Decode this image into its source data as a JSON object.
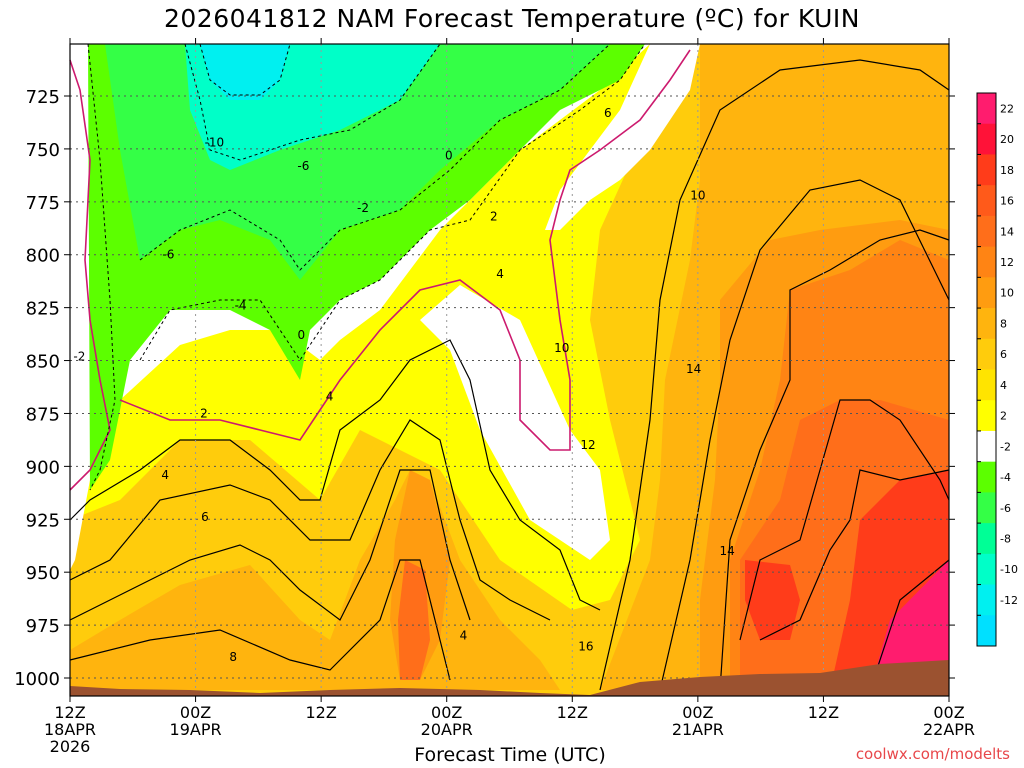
{
  "title": "2026041812 NAM Forecast Temperature (ºC) for KUIN",
  "credit": "coolwx.com/modelts",
  "chart_data": {
    "type": "heatmap",
    "title": "2026041812 NAM Forecast Temperature (ºC) for KUIN",
    "xlabel": "Forecast Time (UTC)",
    "ylabel": "",
    "ylim": [
      1010,
      700
    ],
    "y_ticks": [
      725,
      750,
      775,
      800,
      825,
      850,
      875,
      900,
      925,
      950,
      975,
      1000
    ],
    "x_ticks": [
      {
        "hours": 0,
        "label": [
          "12Z",
          "18APR",
          "2026"
        ]
      },
      {
        "hours": 12,
        "label": [
          "00Z",
          "19APR"
        ]
      },
      {
        "hours": 24,
        "label": [
          "12Z"
        ]
      },
      {
        "hours": 36,
        "label": [
          "00Z",
          "20APR"
        ]
      },
      {
        "hours": 48,
        "label": [
          "12Z"
        ]
      },
      {
        "hours": 60,
        "label": [
          "00Z",
          "21APR"
        ]
      },
      {
        "hours": 72,
        "label": [
          "12Z"
        ]
      },
      {
        "hours": 84,
        "label": [
          "00Z",
          "22APR"
        ]
      }
    ],
    "colorbar": {
      "labels": [
        22,
        20,
        18,
        16,
        14,
        12,
        10,
        8,
        6,
        4,
        2,
        -2,
        -4,
        -6,
        -8,
        -10,
        -12
      ],
      "colors": [
        "#ff1c6e",
        "#ff1238",
        "#ff3c1a",
        "#ff5a1a",
        "#ff6e1a",
        "#ff8414",
        "#ff9c10",
        "#ffb40e",
        "#ffcc0c",
        "#ffe400",
        "#ffff00",
        "#ffffff",
        "#5cff00",
        "#34ff46",
        "#00ff96",
        "#00ffc8",
        "#00f0f0",
        "#00e0ff"
      ]
    },
    "bands": [
      {
        "range": "< -8",
        "color": "#00f0f0"
      },
      {
        "range": "-8 to -6",
        "color": "#00ffc8"
      },
      {
        "range": "-6 to -2",
        "color": "#5cff00"
      },
      {
        "range": "-2 to 2",
        "color": "#ffffff"
      },
      {
        "range": "2 to 4",
        "color": "#ffff00"
      },
      {
        "range": "4 to 6",
        "color": "#ffe400"
      },
      {
        "range": "6 to 8",
        "color": "#ffcc0c"
      },
      {
        "range": "8 to 10",
        "color": "#ffb40e"
      },
      {
        "range": "10 to 12",
        "color": "#ff9c10"
      },
      {
        "range": "12 to 14",
        "color": "#ff8414"
      },
      {
        "range": "14 to 16",
        "color": "#ff6e1a"
      },
      {
        "range": "16 to 18",
        "color": "#ff3c1a"
      },
      {
        "range": "> 18",
        "color": "#ff1c6e"
      }
    ],
    "contour_labels": [
      {
        "text": "-10",
        "hours": 13.8,
        "p": 747
      },
      {
        "text": "-6",
        "hours": 22.3,
        "p": 758
      },
      {
        "text": "-2",
        "hours": 28.0,
        "p": 778
      },
      {
        "text": "-6",
        "hours": 9.4,
        "p": 800
      },
      {
        "text": "-4",
        "hours": 16.3,
        "p": 824
      },
      {
        "text": "0",
        "hours": 36.2,
        "p": 753
      },
      {
        "text": "0",
        "hours": 22.1,
        "p": 838
      },
      {
        "text": "2",
        "hours": 40.5,
        "p": 782
      },
      {
        "text": "4",
        "hours": 41.1,
        "p": 809
      },
      {
        "text": "-2",
        "hours": 0.9,
        "p": 848
      },
      {
        "text": "2",
        "hours": 12.8,
        "p": 875
      },
      {
        "text": "4",
        "hours": 24.8,
        "p": 867
      },
      {
        "text": "4",
        "hours": 9.1,
        "p": 904
      },
      {
        "text": "6",
        "hours": 12.9,
        "p": 924
      },
      {
        "text": "8",
        "hours": 15.6,
        "p": 990
      },
      {
        "text": "4",
        "hours": 37.6,
        "p": 980
      },
      {
        "text": "6",
        "hours": 51.4,
        "p": 733
      },
      {
        "text": "10",
        "hours": 60.0,
        "p": 772
      },
      {
        "text": "10",
        "hours": 47.0,
        "p": 844
      },
      {
        "text": "14",
        "hours": 59.6,
        "p": 854
      },
      {
        "text": "12",
        "hours": 49.5,
        "p": 890
      },
      {
        "text": "14",
        "hours": 62.8,
        "p": 940
      },
      {
        "text": "16",
        "hours": 49.3,
        "p": 985
      }
    ],
    "ground_color": "#9b5230"
  }
}
